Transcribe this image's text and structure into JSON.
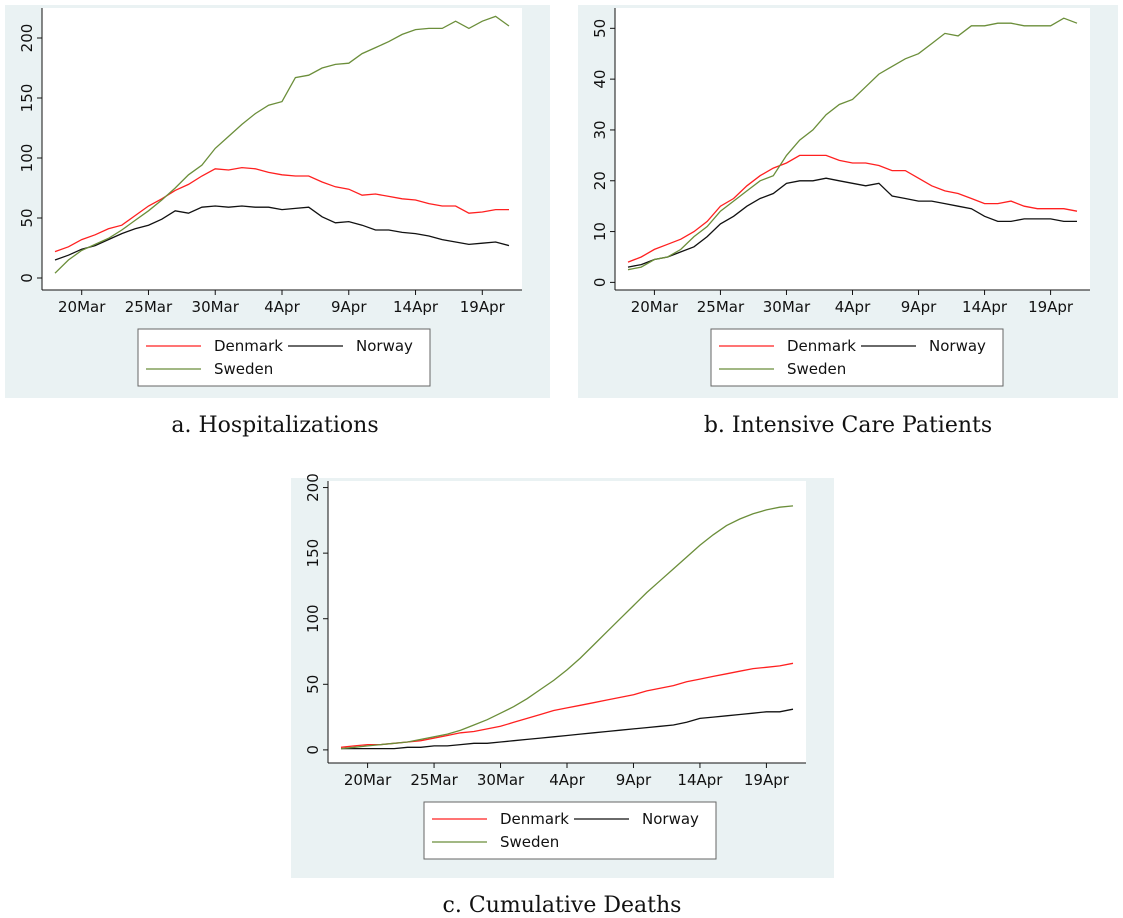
{
  "chart_data": [
    {
      "type": "line",
      "caption": "a. Hospitalizations",
      "categories": [
        null,
        null,
        "20Mar",
        null,
        null,
        null,
        null,
        "25Mar",
        null,
        null,
        null,
        null,
        "30Mar",
        null,
        null,
        null,
        null,
        "4Apr",
        null,
        null,
        null,
        null,
        "9Apr",
        null,
        null,
        null,
        null,
        "14Apr",
        null,
        null,
        null,
        null,
        "19Apr",
        null,
        null
      ],
      "ylim": [
        -10,
        225
      ],
      "yticks": [
        0,
        50,
        100,
        150,
        200
      ],
      "grid": false,
      "series": [
        {
          "name": "Denmark",
          "color": "#ff2020",
          "values": [
            22,
            26,
            32,
            36,
            41,
            44,
            52,
            60,
            66,
            73,
            78,
            85,
            91,
            90,
            92,
            91,
            88,
            86,
            85,
            85,
            80,
            76,
            74,
            69,
            70,
            68,
            66,
            65,
            62,
            60,
            60,
            54,
            55,
            57,
            57
          ]
        },
        {
          "name": "Norway",
          "color": "#111111",
          "values": [
            15,
            19,
            24,
            27,
            32,
            37,
            41,
            44,
            49,
            56,
            54,
            59,
            60,
            59,
            60,
            59,
            59,
            57,
            58,
            59,
            51,
            46,
            47,
            44,
            40,
            40,
            38,
            37,
            35,
            32,
            30,
            28,
            29,
            30,
            27
          ]
        },
        {
          "name": "Sweden",
          "color": "#6b8e3a",
          "values": [
            4,
            15,
            23,
            28,
            33,
            40,
            48,
            56,
            65,
            75,
            86,
            94,
            108,
            118,
            128,
            137,
            144,
            147,
            167,
            169,
            175,
            178,
            179,
            187,
            192,
            197,
            203,
            207,
            208,
            208,
            214,
            208,
            214,
            218,
            210
          ]
        }
      ]
    },
    {
      "type": "line",
      "caption": "b. Intensive Care Patients",
      "categories": [
        null,
        null,
        "20Mar",
        null,
        null,
        null,
        null,
        "25Mar",
        null,
        null,
        null,
        null,
        "30Mar",
        null,
        null,
        null,
        null,
        "4Apr",
        null,
        null,
        null,
        null,
        "9Apr",
        null,
        null,
        null,
        null,
        "14Apr",
        null,
        null,
        null,
        null,
        "19Apr",
        null,
        null
      ],
      "ylim": [
        -1.5,
        54
      ],
      "yticks": [
        0,
        10,
        20,
        30,
        40,
        50
      ],
      "grid": false,
      "series": [
        {
          "name": "Denmark",
          "color": "#ff2020",
          "values": [
            4,
            5,
            6.5,
            7.5,
            8.5,
            10,
            12,
            15,
            16.5,
            19,
            21,
            22.5,
            23.5,
            25,
            25,
            25,
            24,
            23.5,
            23.5,
            23,
            22,
            22,
            20.5,
            19,
            18,
            17.5,
            16.5,
            15.5,
            15.5,
            16,
            15,
            14.5,
            14.5,
            14.5,
            14
          ]
        },
        {
          "name": "Norway",
          "color": "#111111",
          "values": [
            3,
            3.5,
            4.5,
            5,
            6,
            7,
            9,
            11.5,
            13,
            15,
            16.5,
            17.5,
            19.5,
            20,
            20,
            20.5,
            20,
            19.5,
            19,
            19.5,
            17,
            16.5,
            16,
            16,
            15.5,
            15,
            14.5,
            13,
            12,
            12,
            12.5,
            12.5,
            12.5,
            12,
            12
          ]
        },
        {
          "name": "Sweden",
          "color": "#6b8e3a",
          "values": [
            2.5,
            3,
            4.5,
            5,
            6.5,
            9,
            11,
            14,
            16,
            18,
            20,
            21,
            25,
            28,
            30,
            33,
            35,
            36,
            38.5,
            41,
            42.5,
            44,
            45,
            47,
            49,
            48.5,
            50.5,
            50.5,
            51,
            51,
            50.5,
            50.5,
            50.5,
            52,
            51
          ]
        }
      ]
    },
    {
      "type": "line",
      "caption": "c. Cumulative Deaths",
      "categories": [
        null,
        null,
        "20Mar",
        null,
        null,
        null,
        null,
        "25Mar",
        null,
        null,
        null,
        null,
        "30Mar",
        null,
        null,
        null,
        null,
        "4Apr",
        null,
        null,
        null,
        null,
        "9Apr",
        null,
        null,
        null,
        null,
        "14Apr",
        null,
        null,
        null,
        null,
        "19Apr",
        null,
        null
      ],
      "ylim": [
        -10,
        205
      ],
      "yticks": [
        0,
        50,
        100,
        150,
        200
      ],
      "grid": false,
      "series": [
        {
          "name": "Denmark",
          "color": "#ff2020",
          "values": [
            2,
            3,
            4,
            4,
            5,
            6,
            7,
            9,
            11,
            13,
            14,
            16,
            18,
            21,
            24,
            27,
            30,
            32,
            34,
            36,
            38,
            40,
            42,
            45,
            47,
            49,
            52,
            54,
            56,
            58,
            60,
            62,
            63,
            64,
            66
          ]
        },
        {
          "name": "Norway",
          "color": "#111111",
          "values": [
            1,
            1,
            1,
            1,
            1,
            2,
            2,
            3,
            3,
            4,
            5,
            5,
            6,
            7,
            8,
            9,
            10,
            11,
            12,
            13,
            14,
            15,
            16,
            17,
            18,
            19,
            21,
            24,
            25,
            26,
            27,
            28,
            29,
            29,
            31
          ]
        },
        {
          "name": "Sweden",
          "color": "#6b8e3a",
          "values": [
            1,
            2,
            3,
            4,
            5,
            6,
            8,
            10,
            12,
            15,
            19,
            23,
            28,
            33,
            39,
            46,
            53,
            61,
            70,
            80,
            90,
            100,
            110,
            120,
            129,
            138,
            147,
            156,
            164,
            171,
            176,
            180,
            183,
            185,
            186
          ]
        }
      ]
    }
  ]
}
